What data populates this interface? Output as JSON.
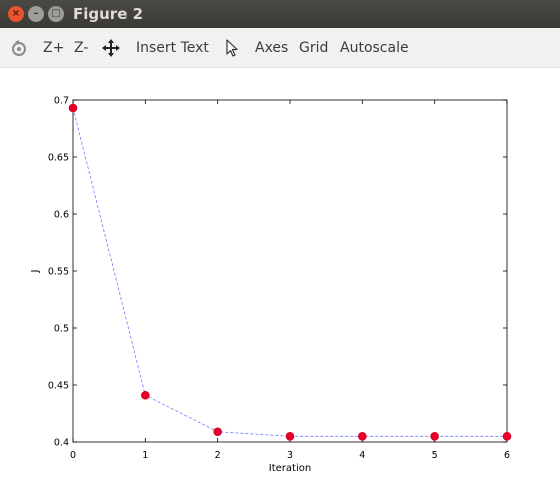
{
  "window": {
    "title": "Figure 2",
    "close_glyph": "×",
    "minimize_glyph": "–",
    "maximize_glyph": "□"
  },
  "toolbar": {
    "zoom_in_label": "Z+",
    "zoom_out_label": "Z-",
    "insert_text_label": "Insert Text",
    "axes_label": "Axes",
    "grid_label": "Grid",
    "autoscale_label": "Autoscale",
    "icons": [
      "rotate-icon",
      "pan-icon",
      "select-arrow-icon"
    ]
  },
  "chart_data": {
    "type": "line",
    "title": "",
    "xlabel": "Iteration",
    "ylabel": "J",
    "x": [
      0,
      1,
      2,
      3,
      4,
      5,
      6
    ],
    "series": [
      {
        "values": [
          0.693,
          0.441,
          0.409,
          0.405,
          0.405,
          0.405,
          0.405
        ],
        "line_color": "#6b7cff",
        "line_style": "dashed",
        "marker_color": "#e8002a",
        "marker": "circle"
      }
    ],
    "xlim": [
      0,
      6
    ],
    "ylim": [
      0.4,
      0.7
    ],
    "xticks": [
      "0",
      "1",
      "2",
      "3",
      "4",
      "5",
      "6"
    ],
    "yticks": [
      "0.4",
      "0.45",
      "0.5",
      "0.55",
      "0.6",
      "0.65",
      "0.7"
    ],
    "grid": false,
    "legend": "none"
  }
}
